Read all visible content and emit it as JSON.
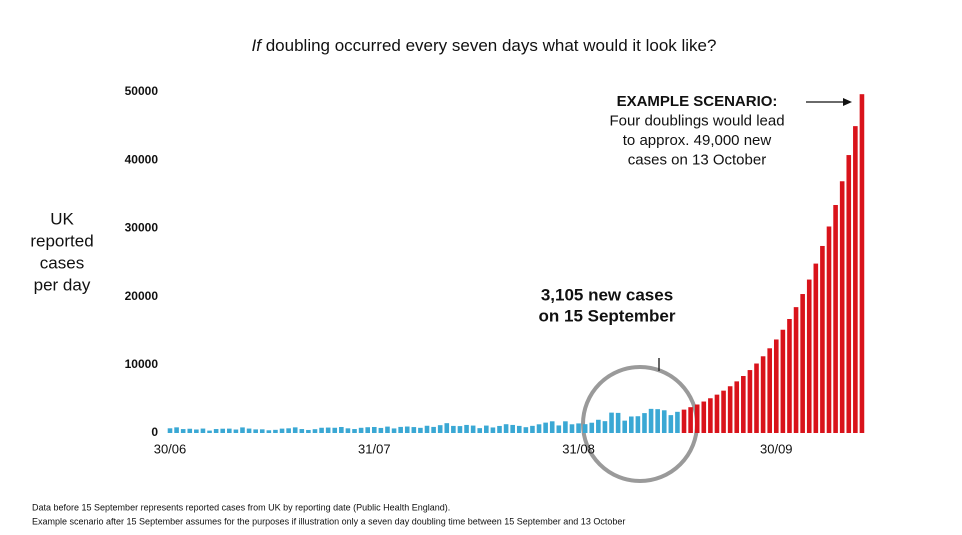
{
  "chart_data": {
    "type": "bar",
    "title_emphasis": "If",
    "title": "doubling occurred every seven days what would it look like?",
    "y_label_lines": [
      "UK",
      "reported",
      "cases",
      "per day"
    ],
    "annotations": [
      {
        "lines": [
          "3,105 new cases",
          "on 15 September"
        ]
      },
      {
        "lines": [
          "EXAMPLE SCENARIO:",
          "Four doublings would lead",
          "to approx. 49,000 new",
          "cases on 13 October"
        ]
      }
    ],
    "footnotes": [
      "Data before 15 September represents reported cases from UK by reporting date (Public Health England).",
      "Example scenario after 15 September assumes for the purposes if illustration only a seven day doubling time between 15 September and 13 October"
    ],
    "categories": [
      "30/06",
      null,
      null,
      null,
      null,
      null,
      null,
      null,
      null,
      null,
      null,
      null,
      null,
      null,
      null,
      null,
      null,
      null,
      null,
      null,
      null,
      null,
      null,
      null,
      null,
      null,
      null,
      null,
      null,
      null,
      null,
      "31/07",
      null,
      null,
      null,
      null,
      null,
      null,
      null,
      null,
      null,
      null,
      null,
      null,
      null,
      null,
      null,
      null,
      null,
      null,
      null,
      null,
      null,
      null,
      null,
      null,
      null,
      null,
      null,
      null,
      null,
      null,
      "31/08",
      null,
      null,
      null,
      null,
      null,
      null,
      null,
      null,
      null,
      null,
      null,
      null,
      null,
      null,
      null,
      null,
      null,
      null,
      null,
      null,
      null,
      null,
      null,
      null,
      null,
      null,
      null,
      null,
      null,
      "30/09",
      null,
      null,
      null,
      null,
      null,
      null,
      null,
      null,
      null,
      null,
      null,
      null,
      null
    ],
    "values": [
      689,
      829,
      576,
      624,
      516,
      650,
      352,
      581,
      630,
      642,
      512,
      820,
      650,
      530,
      538,
      398,
      463,
      642,
      687,
      827,
      580,
      445,
      560,
      769,
      798,
      767,
      880,
      685,
      581,
      763,
      846,
      880,
      743,
      938,
      670,
      892,
      950,
      871,
      758,
      1062,
      891,
      1148,
      1441,
      1040,
      1013,
      1182,
      1089,
      713,
      1089,
      812,
      1033,
      1288,
      1182,
      1041,
      853,
      1048,
      1276,
      1522,
      1715,
      1108,
      1715,
      1276,
      1406,
      1295,
      1508,
      1940,
      1735,
      2988,
      2948,
      1813,
      2420,
      2460,
      2919,
      3539,
      3497,
      3330,
      2621,
      3105,
      3428,
      3785,
      4179,
      4614,
      5094,
      5624,
      6210,
      6856,
      7570,
      8358,
      9228,
      10189,
      11249,
      12420,
      13713,
      15140,
      16716,
      18456,
      20377,
      22498,
      24840,
      27425,
      30280,
      33432,
      36912,
      40754,
      44996,
      49680
    ],
    "colors": [
      "#3aa8d4",
      "#3aa8d4",
      "#3aa8d4",
      "#3aa8d4",
      "#3aa8d4",
      "#3aa8d4",
      "#3aa8d4",
      "#3aa8d4",
      "#3aa8d4",
      "#3aa8d4",
      "#3aa8d4",
      "#3aa8d4",
      "#3aa8d4",
      "#3aa8d4",
      "#3aa8d4",
      "#3aa8d4",
      "#3aa8d4",
      "#3aa8d4",
      "#3aa8d4",
      "#3aa8d4",
      "#3aa8d4",
      "#3aa8d4",
      "#3aa8d4",
      "#3aa8d4",
      "#3aa8d4",
      "#3aa8d4",
      "#3aa8d4",
      "#3aa8d4",
      "#3aa8d4",
      "#3aa8d4",
      "#3aa8d4",
      "#3aa8d4",
      "#3aa8d4",
      "#3aa8d4",
      "#3aa8d4",
      "#3aa8d4",
      "#3aa8d4",
      "#3aa8d4",
      "#3aa8d4",
      "#3aa8d4",
      "#3aa8d4",
      "#3aa8d4",
      "#3aa8d4",
      "#3aa8d4",
      "#3aa8d4",
      "#3aa8d4",
      "#3aa8d4",
      "#3aa8d4",
      "#3aa8d4",
      "#3aa8d4",
      "#3aa8d4",
      "#3aa8d4",
      "#3aa8d4",
      "#3aa8d4",
      "#3aa8d4",
      "#3aa8d4",
      "#3aa8d4",
      "#3aa8d4",
      "#3aa8d4",
      "#3aa8d4",
      "#3aa8d4",
      "#3aa8d4",
      "#3aa8d4",
      "#3aa8d4",
      "#3aa8d4",
      "#3aa8d4",
      "#3aa8d4",
      "#3aa8d4",
      "#3aa8d4",
      "#3aa8d4",
      "#3aa8d4",
      "#3aa8d4",
      "#3aa8d4",
      "#3aa8d4",
      "#3aa8d4",
      "#3aa8d4",
      "#3aa8d4",
      "#3aa8d4",
      "#d9131b",
      "#d9131b",
      "#d9131b",
      "#d9131b",
      "#d9131b",
      "#d9131b",
      "#d9131b",
      "#d9131b",
      "#d9131b",
      "#d9131b",
      "#d9131b",
      "#d9131b",
      "#d9131b",
      "#d9131b",
      "#d9131b",
      "#d9131b",
      "#d9131b",
      "#d9131b",
      "#d9131b",
      "#d9131b",
      "#d9131b",
      "#d9131b",
      "#d9131b",
      "#d9131b",
      "#d9131b",
      "#d9131b",
      "#d9131b",
      "#d9131b"
    ],
    "ylim": [
      0,
      50000
    ],
    "yticks": [
      0,
      10000,
      20000,
      30000,
      40000,
      50000
    ],
    "grid": false
  }
}
